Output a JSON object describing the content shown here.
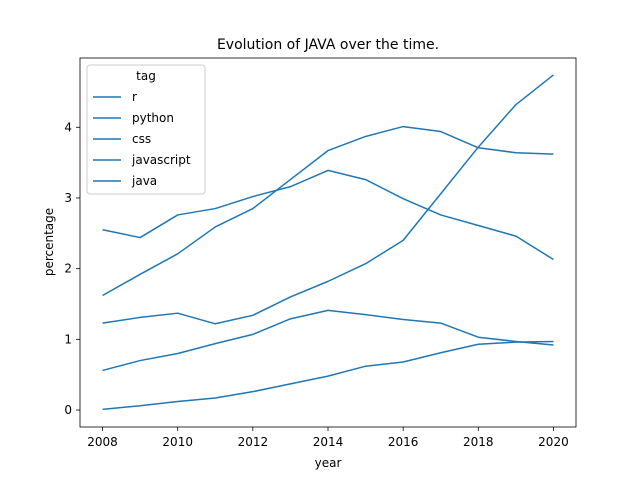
{
  "chart_data": {
    "type": "line",
    "title": "Evolution of JAVA over the time.",
    "xlabel": "year",
    "ylabel": "percentage",
    "xlim": [
      2007.4,
      2020.6
    ],
    "ylim": [
      -0.24,
      4.98
    ],
    "xticks": [
      2008,
      2010,
      2012,
      2014,
      2016,
      2018,
      2020
    ],
    "yticks": [
      0,
      1,
      2,
      3,
      4
    ],
    "grid": false,
    "legend_title": "tag",
    "legend_position": "top-left",
    "line_color": "#1f77b4",
    "x": [
      2008,
      2009,
      2010,
      2011,
      2012,
      2013,
      2014,
      2015,
      2016,
      2017,
      2018,
      2019,
      2020
    ],
    "series": [
      {
        "name": "r",
        "values": [
          0.01,
          0.06,
          0.12,
          0.17,
          0.26,
          0.37,
          0.48,
          0.62,
          0.68,
          0.81,
          0.93,
          0.96,
          0.97
        ]
      },
      {
        "name": "python",
        "values": [
          1.62,
          1.92,
          2.21,
          2.59,
          2.85,
          3.26,
          3.67,
          3.87,
          4.01,
          3.94,
          3.71,
          3.64,
          3.62
        ]
      },
      {
        "name": "css",
        "values": [
          0.56,
          0.7,
          0.8,
          0.94,
          1.07,
          1.29,
          1.41,
          1.35,
          1.28,
          1.23,
          1.03,
          0.97,
          0.92
        ]
      },
      {
        "name": "javascript",
        "values": [
          1.23,
          1.31,
          1.37,
          1.22,
          1.34,
          1.6,
          1.82,
          2.07,
          2.4,
          3.06,
          3.72,
          4.32,
          4.74
        ]
      },
      {
        "name": "java",
        "values": [
          2.55,
          2.44,
          2.76,
          2.85,
          3.02,
          3.16,
          3.39,
          3.26,
          2.99,
          2.76,
          2.61,
          2.46,
          2.13
        ]
      }
    ]
  }
}
